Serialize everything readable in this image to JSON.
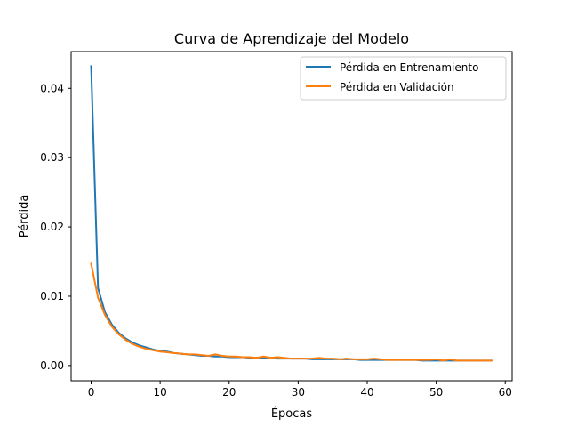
{
  "chart_data": {
    "type": "line",
    "title": "Curva de Aprendizaje del Modelo",
    "xlabel": "Épocas",
    "ylabel": "Pérdida",
    "xlim": [
      -2.9,
      61
    ],
    "ylim": [
      -0.0022,
      0.0453
    ],
    "xticks": [
      0,
      10,
      20,
      30,
      40,
      50,
      60
    ],
    "yticks": [
      0.0,
      0.01,
      0.02,
      0.03,
      0.04
    ],
    "xtick_labels": [
      "0",
      "10",
      "20",
      "30",
      "40",
      "50",
      "60"
    ],
    "ytick_labels": [
      "0.00",
      "0.01",
      "0.02",
      "0.03",
      "0.04"
    ],
    "grid": false,
    "legend_position": "top-right",
    "x": [
      0,
      1,
      2,
      3,
      4,
      5,
      6,
      7,
      8,
      9,
      10,
      11,
      12,
      13,
      14,
      15,
      16,
      17,
      18,
      19,
      20,
      21,
      22,
      23,
      24,
      25,
      26,
      27,
      28,
      29,
      30,
      31,
      32,
      33,
      34,
      35,
      36,
      37,
      38,
      39,
      40,
      41,
      42,
      43,
      44,
      45,
      46,
      47,
      48,
      49,
      50,
      51,
      52,
      53,
      54,
      55,
      56,
      57,
      58
    ],
    "series": [
      {
        "name": "Pérdida en Entrenamiento",
        "color": "#1f77b4",
        "values": [
          0.0432,
          0.0112,
          0.0077,
          0.0059,
          0.0047,
          0.0039,
          0.0033,
          0.0029,
          0.0026,
          0.0023,
          0.0021,
          0.002,
          0.0018,
          0.0017,
          0.0016,
          0.0015,
          0.0014,
          0.0014,
          0.0013,
          0.0013,
          0.0012,
          0.0012,
          0.0012,
          0.0011,
          0.0011,
          0.0011,
          0.0011,
          0.001,
          0.001,
          0.001,
          0.001,
          0.001,
          0.0009,
          0.0009,
          0.0009,
          0.0009,
          0.0009,
          0.0009,
          0.0009,
          0.0008,
          0.0008,
          0.0008,
          0.0008,
          0.0008,
          0.0008,
          0.0008,
          0.0008,
          0.0008,
          0.0007,
          0.0007,
          0.0007,
          0.0007,
          0.0007,
          0.0007,
          0.0007,
          0.0007,
          0.0007,
          0.0007,
          0.0007
        ]
      },
      {
        "name": "Pérdida en Validación",
        "color": "#ff7f0e",
        "values": [
          0.0147,
          0.0098,
          0.0073,
          0.0056,
          0.0045,
          0.0037,
          0.0031,
          0.0027,
          0.0024,
          0.0022,
          0.002,
          0.0019,
          0.0018,
          0.0017,
          0.0016,
          0.0016,
          0.0015,
          0.0014,
          0.0016,
          0.0014,
          0.0013,
          0.0013,
          0.0012,
          0.0012,
          0.0011,
          0.0013,
          0.0011,
          0.0012,
          0.0011,
          0.001,
          0.001,
          0.001,
          0.001,
          0.0011,
          0.001,
          0.001,
          0.0009,
          0.001,
          0.0009,
          0.0009,
          0.0009,
          0.001,
          0.0009,
          0.0008,
          0.0008,
          0.0008,
          0.0008,
          0.0008,
          0.0008,
          0.0008,
          0.0009,
          0.0007,
          0.0009,
          0.0007,
          0.0007,
          0.0007,
          0.0007,
          0.0007,
          0.0007
        ]
      }
    ]
  }
}
